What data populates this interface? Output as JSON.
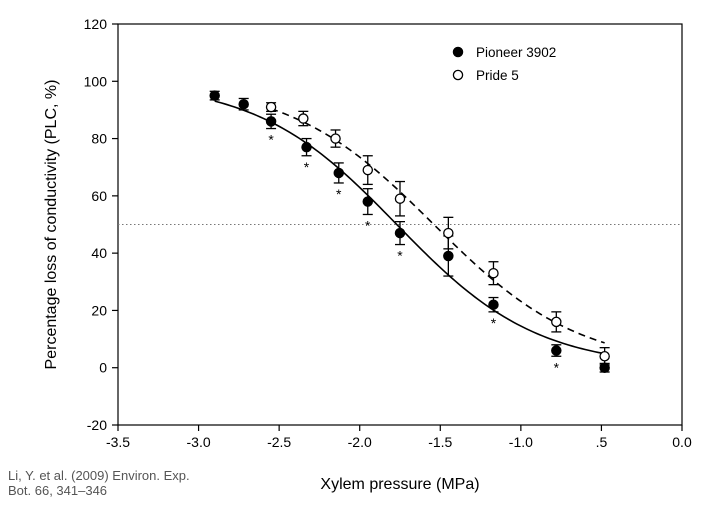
{
  "chart_data": {
    "type": "scatter",
    "xlabel": "Xylem pressure (MPa)",
    "ylabel": "Percentage loss of conductivity (PLC, %)",
    "xlim": [
      -3.5,
      0.0
    ],
    "ylim": [
      -20,
      120
    ],
    "xticks": [
      "-3.5",
      "-3.0",
      "-2.5",
      "-2.0",
      "-1.5",
      "-1.0",
      ".5",
      "0.0"
    ],
    "yticks": [
      "-20",
      "0",
      "20",
      "40",
      "60",
      "80",
      "100",
      "120"
    ],
    "reference_line_y": 50,
    "legend_position": "top-right",
    "series": [
      {
        "name": "Pioneer 3902",
        "marker": "filled-circle",
        "fit_line": "solid",
        "x": [
          -2.9,
          -2.72,
          -2.55,
          -2.33,
          -2.13,
          -1.95,
          -1.75,
          -1.45,
          -1.17,
          -0.78,
          -0.48
        ],
        "y": [
          95,
          92,
          86,
          77,
          68,
          58,
          47,
          39,
          22,
          6,
          0
        ],
        "error": [
          1.5,
          2,
          2.5,
          3,
          3.5,
          4.5,
          4,
          7,
          2.5,
          2,
          1.5
        ]
      },
      {
        "name": "Pride 5",
        "marker": "open-circle",
        "fit_line": "dashed",
        "x": [
          -2.55,
          -2.35,
          -2.15,
          -1.95,
          -1.75,
          -1.45,
          -1.17,
          -0.78,
          -0.48
        ],
        "y": [
          91,
          87,
          80,
          69,
          59,
          47,
          33,
          16,
          4
        ],
        "error": [
          1.5,
          2.5,
          3,
          5,
          6,
          5.5,
          4,
          3.5,
          3
        ]
      }
    ],
    "significance_marks": {
      "symbol": "*",
      "x": [
        -2.55,
        -2.33,
        -2.13,
        -1.95,
        -1.75,
        -1.17,
        -0.78
      ]
    }
  },
  "citation": {
    "line1": "Li, Y. et al. (2009) Environ. Exp.",
    "line2": "Bot. 66, 341–346"
  }
}
